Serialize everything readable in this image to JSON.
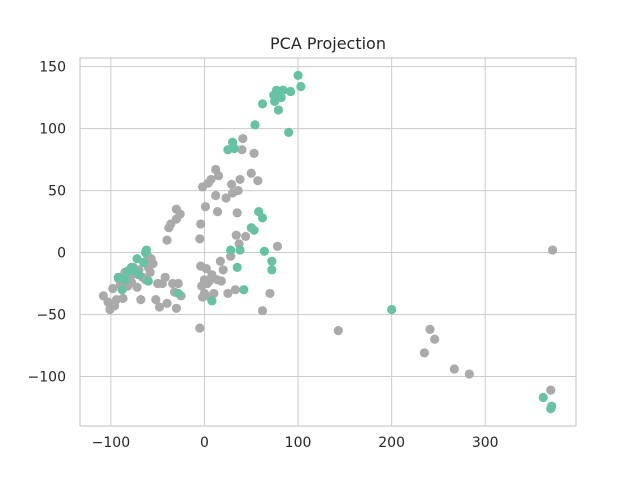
{
  "chart_data": {
    "type": "scatter",
    "title": "PCA Projection",
    "xlabel": "",
    "ylabel": "",
    "xlim": [
      -133,
      397
    ],
    "ylim": [
      -140,
      157
    ],
    "xticks": [
      -100,
      0,
      100,
      200,
      300
    ],
    "yticks": [
      -100,
      -50,
      0,
      50,
      100,
      150
    ],
    "xtick_labels": [
      "−100",
      "0",
      "100",
      "200",
      "300"
    ],
    "ytick_labels": [
      "−100",
      "−50",
      "0",
      "50",
      "100",
      "150"
    ],
    "grid": true,
    "legend": "none",
    "colors": {
      "gray": "#aaaaaa",
      "teal": "#66c2a5"
    },
    "series": [
      {
        "color": "#aaaaaa",
        "points": [
          [
            -108,
            -35
          ],
          [
            -103,
            -40
          ],
          [
            -101,
            -46
          ],
          [
            -98,
            -29
          ],
          [
            -96,
            -43
          ],
          [
            -94,
            -38
          ],
          [
            -92,
            -21
          ],
          [
            -90,
            -26
          ],
          [
            -87,
            -37
          ],
          [
            -85,
            -16
          ],
          [
            -82,
            -27
          ],
          [
            -80,
            -21
          ],
          [
            -78,
            -24
          ],
          [
            -76,
            -12
          ],
          [
            -74,
            -17
          ],
          [
            -72,
            -28
          ],
          [
            -70,
            -14
          ],
          [
            -68,
            -38
          ],
          [
            -66,
            -20
          ],
          [
            -64,
            -8
          ],
          [
            -63,
            -22
          ],
          [
            -61,
            -2
          ],
          [
            -60,
            -12
          ],
          [
            -58,
            -16
          ],
          [
            -57,
            -5
          ],
          [
            -55,
            -9
          ],
          [
            -52,
            -38
          ],
          [
            -50,
            -25
          ],
          [
            -48,
            -44
          ],
          [
            -45,
            -25
          ],
          [
            -42,
            -20
          ],
          [
            -40,
            10
          ],
          [
            -40,
            -41
          ],
          [
            -38,
            20
          ],
          [
            -36,
            23
          ],
          [
            -34,
            -25
          ],
          [
            -32,
            -32
          ],
          [
            -30,
            -45
          ],
          [
            -30,
            27
          ],
          [
            -30,
            35
          ],
          [
            -28,
            -25
          ],
          [
            -26,
            31
          ],
          [
            -25,
            -35
          ],
          [
            -5,
            -61
          ],
          [
            -5,
            11
          ],
          [
            -4,
            23
          ],
          [
            -4,
            -11
          ],
          [
            -3,
            -27
          ],
          [
            -2,
            -36
          ],
          [
            -2,
            53
          ],
          [
            0,
            -22
          ],
          [
            0,
            -33
          ],
          [
            1,
            37
          ],
          [
            2,
            -13
          ],
          [
            3,
            -25
          ],
          [
            4,
            56
          ],
          [
            5,
            -23
          ],
          [
            6,
            -36
          ],
          [
            7,
            59
          ],
          [
            8,
            -18
          ],
          [
            10,
            -33
          ],
          [
            12,
            46
          ],
          [
            12,
            67
          ],
          [
            14,
            -22
          ],
          [
            14,
            33
          ],
          [
            15,
            62
          ],
          [
            17,
            -7
          ],
          [
            18,
            -23
          ],
          [
            20,
            -14
          ],
          [
            23,
            44
          ],
          [
            25,
            -33
          ],
          [
            28,
            -3
          ],
          [
            29,
            55
          ],
          [
            30,
            48
          ],
          [
            33,
            -30
          ],
          [
            34,
            14
          ],
          [
            35,
            32
          ],
          [
            36,
            50
          ],
          [
            37,
            7
          ],
          [
            38,
            59
          ],
          [
            40,
            83
          ],
          [
            41,
            92
          ],
          [
            44,
            13
          ],
          [
            50,
            64
          ],
          [
            53,
            80
          ],
          [
            57,
            58
          ],
          [
            62,
            -47
          ],
          [
            70,
            -33
          ],
          [
            78,
            5
          ],
          [
            143,
            -63
          ],
          [
            241,
            -62
          ],
          [
            235,
            -81
          ],
          [
            246,
            -70
          ],
          [
            267,
            -94
          ],
          [
            283,
            -98
          ],
          [
            370,
            -111
          ],
          [
            372,
            2
          ]
        ]
      },
      {
        "color": "#66c2a5",
        "points": [
          [
            -92,
            -20
          ],
          [
            -88,
            -30
          ],
          [
            -85,
            -22
          ],
          [
            -82,
            -15
          ],
          [
            -78,
            -12
          ],
          [
            -74,
            -15
          ],
          [
            -72,
            -5
          ],
          [
            -70,
            -18
          ],
          [
            -65,
            -8
          ],
          [
            -63,
            0
          ],
          [
            -62,
            2
          ],
          [
            -60,
            -23
          ],
          [
            -28,
            -33
          ],
          [
            8,
            -39
          ],
          [
            25,
            83
          ],
          [
            28,
            2
          ],
          [
            30,
            89
          ],
          [
            32,
            84
          ],
          [
            35,
            -12
          ],
          [
            38,
            2
          ],
          [
            42,
            -30
          ],
          [
            50,
            20
          ],
          [
            53,
            18
          ],
          [
            54,
            103
          ],
          [
            58,
            33
          ],
          [
            62,
            120
          ],
          [
            62,
            28
          ],
          [
            64,
            1
          ],
          [
            72,
            -7
          ],
          [
            72,
            -14
          ],
          [
            74,
            127
          ],
          [
            75,
            122
          ],
          [
            77,
            131
          ],
          [
            79,
            115
          ],
          [
            80,
            130
          ],
          [
            82,
            125
          ],
          [
            84,
            131
          ],
          [
            90,
            97
          ],
          [
            92,
            130
          ],
          [
            100,
            143
          ],
          [
            103,
            134
          ],
          [
            200,
            -46
          ],
          [
            362,
            -117
          ],
          [
            370,
            -126
          ],
          [
            371,
            -124
          ]
        ]
      }
    ]
  }
}
